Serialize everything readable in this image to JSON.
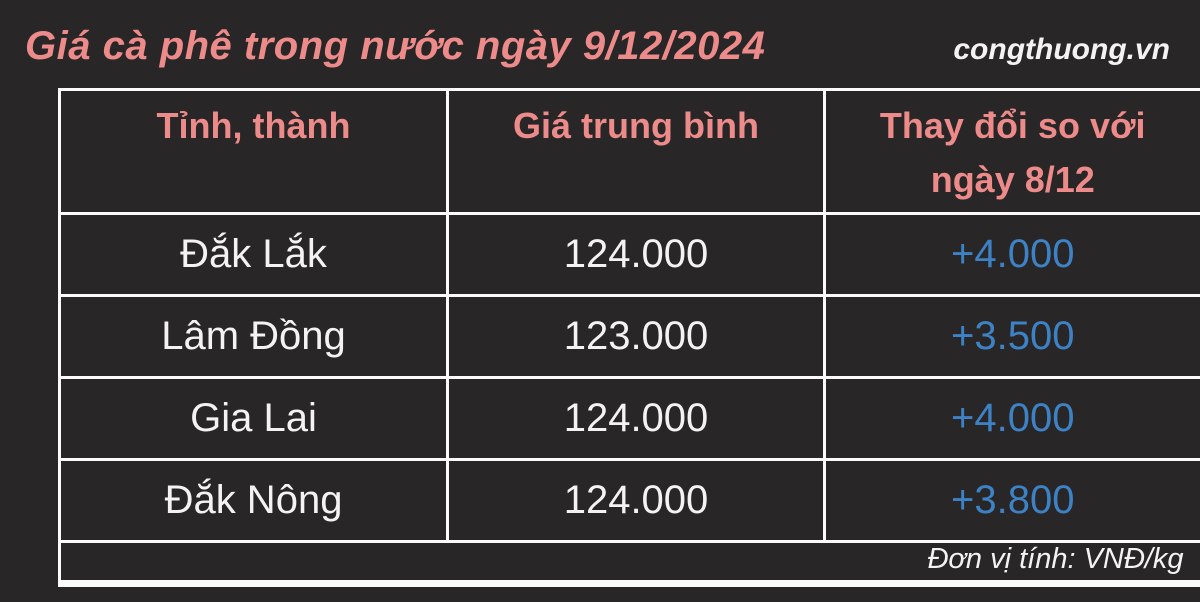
{
  "page": {
    "title": "Giá cà phê trong nước ngày 9/12/2024",
    "watermark": "congthuong.vn"
  },
  "table": {
    "columns": [
      "Tỉnh, thành",
      "Giá trung bình",
      "Thay đổi so với ngày 8/12"
    ],
    "rows": [
      {
        "province": "Đắk Lắk",
        "price": "124.000",
        "change": "+4.000"
      },
      {
        "province": "Lâm Đồng",
        "price": "123.000",
        "change": "+3.500"
      },
      {
        "province": "Gia Lai",
        "price": "124.000",
        "change": "+4.000"
      },
      {
        "province": "Đắk Nông",
        "price": "124.000",
        "change": "+3.800"
      }
    ],
    "footer_note": "Đơn vị tính: VNĐ/kg"
  },
  "colors": {
    "background": "#282626",
    "accent_pink": "#ED8A8A",
    "change_blue": "#3E82C6",
    "text_white": "#F4F2F2",
    "border_white": "#FBFBFB"
  },
  "chart_data": {
    "type": "table",
    "title": "Giá cà phê trong nước ngày 9/12/2024",
    "columns": [
      "Tỉnh, thành",
      "Giá trung bình",
      "Thay đổi so với ngày 8/12"
    ],
    "rows": [
      [
        "Đắk Lắk",
        "124.000",
        "+4.000"
      ],
      [
        "Lâm Đồng",
        "123.000",
        "+3.500"
      ],
      [
        "Gia Lai",
        "124.000",
        "+4.000"
      ],
      [
        "Đắk Nông",
        "124.000",
        "+3.800"
      ]
    ],
    "unit_note": "Đơn vị tính: VNĐ/kg",
    "source_watermark": "congthuong.vn",
    "layout": {
      "header_text_color": "#ED8A8A",
      "value_text_color": "#F4F2F2",
      "change_text_color": "#3E82C6",
      "grid": "white borders on dark background"
    }
  }
}
